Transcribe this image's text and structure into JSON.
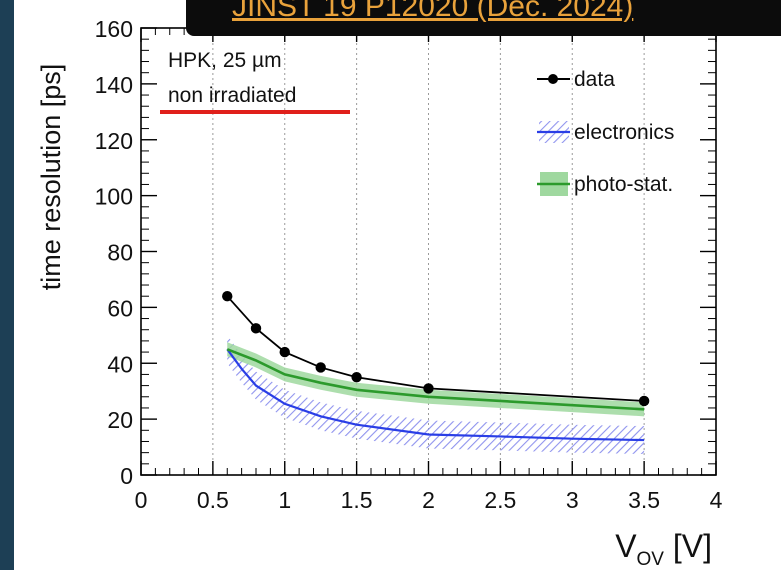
{
  "banner": {
    "text": "JINST 19 P12020  (Dec. 2024)"
  },
  "annotation": {
    "line1": "HPK, 25 µm",
    "line2": "non irradiated",
    "underline_color": "#e0201b"
  },
  "colors": {
    "data": "#000000",
    "electronics": "#2a3ee6",
    "photo_stat": "#2c9a2c",
    "photo_band": "#9fd89f",
    "electronics_hatch": "#8f93ee"
  },
  "chart_data": {
    "type": "line",
    "xlabel_main": "V",
    "xlabel_sub": "OV",
    "xlabel_unit": " [V]",
    "ylabel": "time resolution [ps]",
    "xlim": [
      0,
      4
    ],
    "ylim": [
      0,
      160
    ],
    "xticks": [
      0,
      0.5,
      1,
      1.5,
      2,
      2.5,
      3,
      3.5,
      4
    ],
    "xtick_labels": [
      "0",
      "0.5",
      "1",
      "1.5",
      "2",
      "2.5",
      "3",
      "3.5",
      "4"
    ],
    "yticks": [
      0,
      20,
      40,
      60,
      80,
      100,
      120,
      140,
      160
    ],
    "ytick_labels": [
      "0",
      "20",
      "40",
      "60",
      "80",
      "100",
      "120",
      "140",
      "160"
    ],
    "grid_x": [
      0.5,
      1,
      1.5,
      2,
      2.5,
      3,
      3.5
    ],
    "legend_position": "top-right",
    "series": [
      {
        "name": "data",
        "style": "markers+line",
        "x": [
          0.6,
          0.8,
          1.0,
          1.25,
          1.5,
          2.0,
          3.5
        ],
        "y": [
          64,
          52.5,
          44,
          38.5,
          35,
          31,
          26.5
        ]
      },
      {
        "name": "electronics",
        "style": "line+hatched-band",
        "x": [
          0.6,
          0.7,
          0.8,
          1.0,
          1.25,
          1.5,
          2.0,
          2.5,
          3.0,
          3.5
        ],
        "y": [
          45,
          38,
          32,
          25.5,
          21,
          18,
          14.5,
          13.8,
          13,
          12.5
        ],
        "band": 5
      },
      {
        "name": "photo-stat.",
        "style": "line+band",
        "x": [
          0.6,
          0.8,
          1.0,
          1.25,
          1.5,
          2.0,
          2.5,
          3.0,
          3.5
        ],
        "y": [
          45,
          41,
          36,
          33,
          30.5,
          28,
          26.5,
          25,
          23.5
        ],
        "band": 2.5
      }
    ]
  }
}
